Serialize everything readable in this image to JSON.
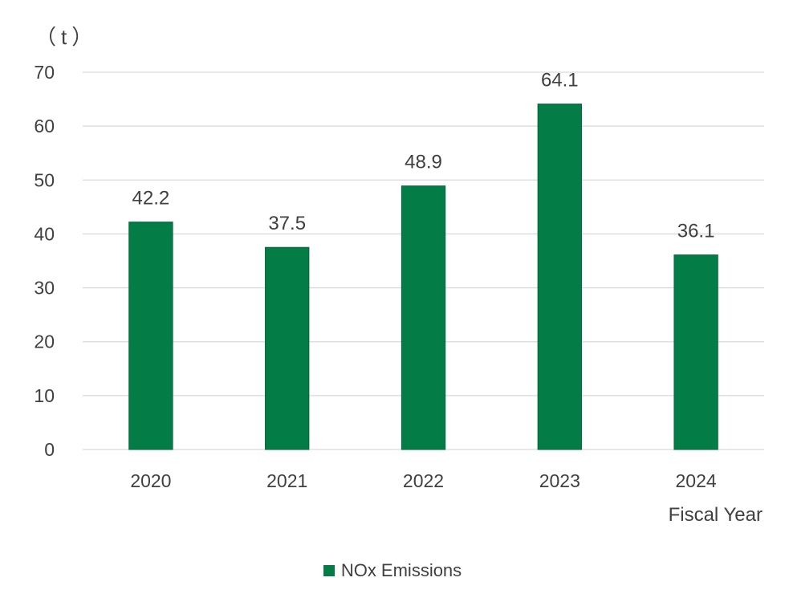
{
  "chart_data": {
    "type": "bar",
    "title": "",
    "unit_label": "（t）",
    "xlabel": "Fiscal Year",
    "ylabel": "",
    "categories": [
      "2020",
      "2021",
      "2022",
      "2023",
      "2024"
    ],
    "series": [
      {
        "name": "NOx Emissions",
        "values": [
          42.2,
          37.5,
          48.9,
          64.1,
          36.1
        ],
        "value_labels": [
          "42.2",
          "37.5",
          "48.9",
          "64.1",
          "36.1"
        ]
      }
    ],
    "ylim": [
      0,
      70
    ],
    "yticks": [
      0,
      10,
      20,
      30,
      40,
      50,
      60,
      70
    ],
    "grid": true,
    "legend_position": "bottom-center",
    "colors": {
      "bar": "#047c45",
      "grid": "#d9d9d9",
      "text": "#404040"
    }
  }
}
